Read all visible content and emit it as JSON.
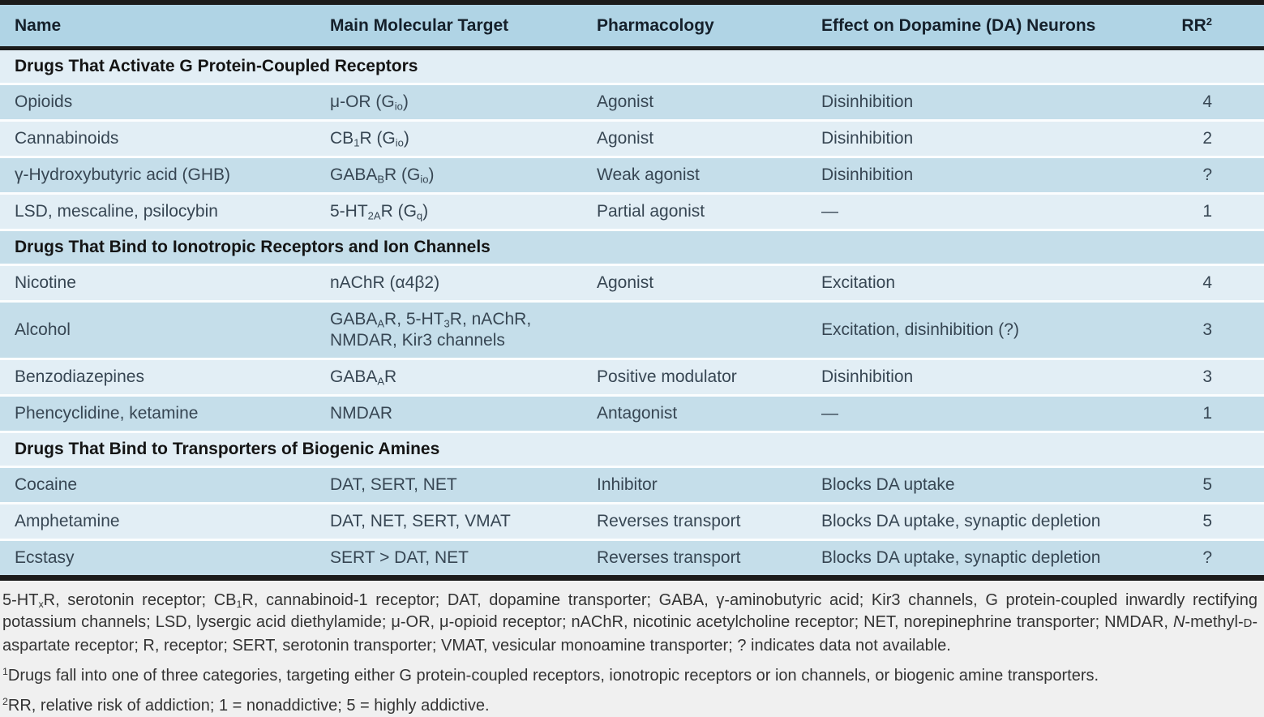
{
  "colors": {
    "page_bg": "#f0f0f0",
    "header_bg": "#b0d4e5",
    "row_medium": "#c5deea",
    "row_light": "#e2eef5",
    "border_dark": "#1b1b1b",
    "separator": "#fbfdfe"
  },
  "table": {
    "columns": [
      "Name",
      "Main Molecular Target",
      "Pharmacology",
      "Effect on Dopamine (DA) Neurons",
      "RR^2^"
    ],
    "rows": [
      {
        "type": "section",
        "label": "Drugs That Activate G Protein-Coupled Receptors"
      },
      {
        "type": "data",
        "name": "Opioids",
        "target": "μ-OR (G~io~)",
        "pharmacology": "Agonist",
        "effect": "Disinhibition",
        "rr": "4"
      },
      {
        "type": "data",
        "name": "Cannabinoids",
        "target": "CB~1~R (G~io~)",
        "pharmacology": "Agonist",
        "effect": "Disinhibition",
        "rr": "2"
      },
      {
        "type": "data",
        "name": "γ-Hydroxybutyric acid (GHB)",
        "target": "GABA~B~R (G~io~)",
        "pharmacology": "Weak agonist",
        "effect": "Disinhibition",
        "rr": "?"
      },
      {
        "type": "data",
        "name": "LSD, mescaline, psilocybin",
        "target": "5-HT~2A~R (G~q~)",
        "pharmacology": "Partial agonist",
        "effect": "—",
        "rr": "1"
      },
      {
        "type": "section",
        "label": "Drugs That Bind to Ionotropic Receptors and Ion Channels"
      },
      {
        "type": "data",
        "name": "Nicotine",
        "target": "nAChR (α4β2)",
        "pharmacology": "Agonist",
        "effect": "Excitation",
        "rr": "4"
      },
      {
        "type": "data",
        "name": "Alcohol",
        "target": "GABA~A~R, 5-HT~3~R, nAChR,\nNMDAR, Kir3 channels",
        "pharmacology": "",
        "effect": "Excitation, disinhibition (?)",
        "rr": "3"
      },
      {
        "type": "data",
        "name": "Benzodiazepines",
        "target": "GABA~A~R",
        "pharmacology": "Positive modulator",
        "effect": "Disinhibition",
        "rr": "3"
      },
      {
        "type": "data",
        "name": "Phencyclidine, ketamine",
        "target": "NMDAR",
        "pharmacology": "Antagonist",
        "effect": "—",
        "rr": "1"
      },
      {
        "type": "section",
        "label": "Drugs That Bind to Transporters of Biogenic Amines"
      },
      {
        "type": "data",
        "name": "Cocaine",
        "target": "DAT, SERT, NET",
        "pharmacology": "Inhibitor",
        "effect": "Blocks DA uptake",
        "rr": "5"
      },
      {
        "type": "data",
        "name": "Amphetamine",
        "target": "DAT, NET, SERT, VMAT",
        "pharmacology": "Reverses transport",
        "effect": "Blocks DA uptake, synaptic depletion",
        "rr": "5"
      },
      {
        "type": "data",
        "name": "Ecstasy",
        "target": "SERT > DAT, NET",
        "pharmacology": "Reverses transport",
        "effect": "Blocks DA uptake, synaptic depletion",
        "rr": "?"
      }
    ]
  },
  "footnotes": {
    "abbreviations": "5-HT~x~R, serotonin receptor; CB~1~R, cannabinoid-1 receptor; DAT, dopamine transporter; GABA, γ-aminobutyric acid; Kir3 channels, G protein-coupled inwardly rectifying potassium channels; LSD, lysergic acid diethylamide; μ-OR, μ-opioid receptor; nAChR, nicotinic acetylcholine receptor; NET, norepinephrine transporter; NMDAR, *N*-methyl-{D}-aspartate receptor; R, receptor; SERT, serotonin transporter; VMAT, vesicular monoamine transporter; ? indicates data not available.",
    "note1": "^1^Drugs fall into one of three categories, targeting either G protein-coupled receptors, ionotropic receptors or ion channels, or biogenic amine transporters.",
    "note2": "^2^RR, relative risk of addiction; 1 = nonaddictive; 5 = highly addictive."
  }
}
